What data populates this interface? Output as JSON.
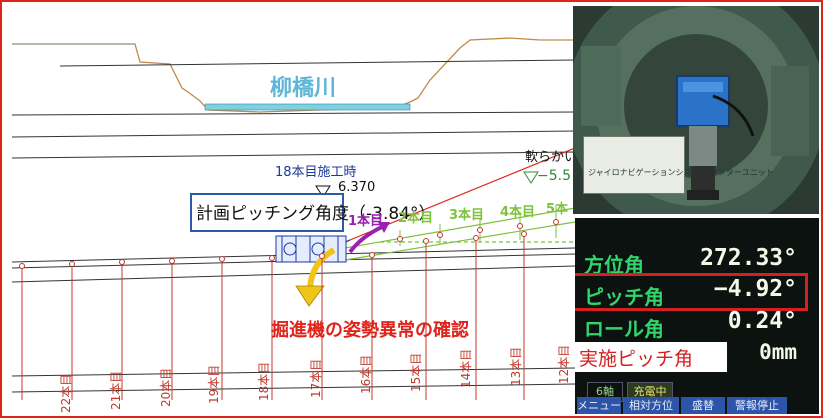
{
  "river": {
    "name": "柳橋川"
  },
  "tunnel": {
    "construction_label": "18本目施工時",
    "plan_elevation": "6.370",
    "soft_ground_label": "軟らかい",
    "ground_elevation": "−5.5",
    "plan_pitch_label": "計画ピッチング角度（-3.84°）",
    "alert_label": "掘進機の姿勢異常の確認",
    "pipes_ahead": [
      "1本目",
      "2本目",
      "3本目",
      "4本目",
      "5本"
    ],
    "pipes_behind": [
      "22本目",
      "21本目",
      "20本目",
      "19本目",
      "18本目",
      "17本目",
      "16本目",
      "15本目",
      "14本目",
      "13本目",
      "12本目"
    ]
  },
  "display": {
    "azimuth_label": "方位角",
    "azimuth_value": "272.33°",
    "pitch_label": "ピッチ角",
    "pitch_value": "−4.92°",
    "roll_label": "ロール角",
    "roll_value": "0.24°",
    "zero_value": "0mm",
    "actual_pitch_label": "実施ピッチ角",
    "mode_label": "6軸",
    "charge_label": "充電中",
    "function_buttons": [
      "メニュー",
      "相対方位",
      "盛替",
      "警報停止"
    ]
  },
  "device_card": {
    "text": "ジャイロナビゲーションシステム センターユニット"
  },
  "colors": {
    "frame": "#e0231b",
    "river": "#5fb6d6",
    "planned_path": "#7ec13c",
    "alert": "#e0231b",
    "pitch_box": "#d32020",
    "plan_box_border": "#2a5aa8"
  },
  "icons": {
    "direction_arrow": "yellow-curved-arrow-icon",
    "transit_arrow": "purple-curved-arrow-icon"
  }
}
